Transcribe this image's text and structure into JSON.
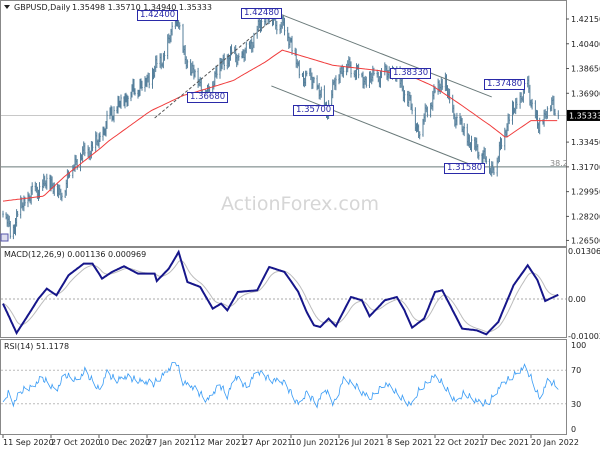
{
  "chart_data": [
    {
      "type": "ohlc",
      "symbol_header": "GBPUSD,Daily",
      "ohlc_header": "1.35498 1.35710 1.34940 1.35333",
      "watermark": "ActionForex.com",
      "y_ticks": [
        "1.42150",
        "1.40400",
        "1.38650",
        "1.36900",
        "1.35333",
        "1.33450",
        "1.31700",
        "1.29950",
        "1.28200",
        "1.26500"
      ],
      "ylim": [
        1.265,
        1.4215
      ],
      "current_price": 1.35333,
      "current_price_label": "1.35333",
      "fib_level": {
        "label": "38.2",
        "price": 1.317
      },
      "x_ticks": [
        {
          "date": "2020-09-11",
          "label": "11 Sep 2020"
        },
        {
          "date": "2020-10-27",
          "label": "27 Oct 2020"
        },
        {
          "date": "2020-12-10",
          "label": "10 Dec 2020"
        },
        {
          "date": "2021-01-27",
          "label": "27 Jan 2021"
        },
        {
          "date": "2021-03-12",
          "label": "12 Mar 2021"
        },
        {
          "date": "2021-04-27",
          "label": "27 Apr 2021"
        },
        {
          "date": "2021-06-10",
          "label": "10 Jun 2021"
        },
        {
          "date": "2021-07-26",
          "label": "26 Jul 2021"
        },
        {
          "date": "2021-09-08",
          "label": "8 Sep 2021"
        },
        {
          "date": "2021-10-22",
          "label": "22 Oct 2021"
        },
        {
          "date": "2021-12-07",
          "label": "7 Dec 2021"
        },
        {
          "date": "2022-01-20",
          "label": "20 Jan 2022"
        }
      ],
      "price_path": [
        [
          "2020-09-11",
          1.289
        ],
        [
          "2020-09-18",
          1.27
        ],
        [
          "2020-09-28",
          1.289
        ],
        [
          "2020-10-12",
          1.3
        ],
        [
          "2020-10-27",
          1.307
        ],
        [
          "2020-11-04",
          1.296
        ],
        [
          "2020-11-18",
          1.321
        ],
        [
          "2020-12-10",
          1.335
        ],
        [
          "2020-12-21",
          1.353
        ],
        [
          "2021-01-08",
          1.368
        ],
        [
          "2021-01-27",
          1.378
        ],
        [
          "2021-02-12",
          1.396
        ],
        [
          "2021-02-24",
          1.424
        ],
        [
          "2021-03-01",
          1.396
        ],
        [
          "2021-03-12",
          1.382
        ],
        [
          "2021-03-24",
          1.3668
        ],
        [
          "2021-04-01",
          1.385
        ],
        [
          "2021-04-15",
          1.396
        ],
        [
          "2021-04-27",
          1.394
        ],
        [
          "2021-05-11",
          1.414
        ],
        [
          "2021-05-17",
          1.4248
        ],
        [
          "2021-06-02",
          1.417
        ],
        [
          "2021-06-10",
          1.406
        ],
        [
          "2021-06-18",
          1.382
        ],
        [
          "2021-07-02",
          1.378
        ],
        [
          "2021-07-14",
          1.357
        ],
        [
          "2021-07-26",
          1.385
        ],
        [
          "2021-08-05",
          1.389
        ],
        [
          "2021-08-19",
          1.378
        ],
        [
          "2021-09-02",
          1.382
        ],
        [
          "2021-09-15",
          1.3833
        ],
        [
          "2021-09-28",
          1.364
        ],
        [
          "2021-10-07",
          1.342
        ],
        [
          "2021-10-22",
          1.371
        ],
        [
          "2021-11-01",
          1.378
        ],
        [
          "2021-11-05",
          1.36
        ],
        [
          "2021-11-15",
          1.346
        ],
        [
          "2021-11-24",
          1.335
        ],
        [
          "2021-12-07",
          1.325
        ],
        [
          "2021-12-14",
          1.3158
        ],
        [
          "2021-12-20",
          1.321
        ],
        [
          "2021-12-28",
          1.346
        ],
        [
          "2022-01-06",
          1.36
        ],
        [
          "2022-01-13",
          1.369
        ],
        [
          "2022-01-17",
          1.3748
        ],
        [
          "2022-01-20",
          1.364
        ],
        [
          "2022-01-27",
          1.343
        ],
        [
          "2022-02-03",
          1.358
        ],
        [
          "2022-02-09",
          1.36
        ],
        [
          "2022-02-14",
          1.35333
        ]
      ],
      "moving_average": [
        [
          "2020-09-11",
          1.2928
        ],
        [
          "2020-10-20",
          1.2963
        ],
        [
          "2020-11-09",
          1.3106
        ],
        [
          "2020-12-20",
          1.3354
        ],
        [
          "2021-01-31",
          1.3568
        ],
        [
          "2021-03-01",
          1.3674
        ],
        [
          "2021-03-24",
          1.3724
        ],
        [
          "2021-04-18",
          1.3781
        ],
        [
          "2021-05-17",
          1.3909
        ],
        [
          "2021-06-02",
          1.3995
        ],
        [
          "2021-06-18",
          1.3959
        ],
        [
          "2021-07-20",
          1.3888
        ],
        [
          "2021-08-30",
          1.3852
        ],
        [
          "2021-09-28",
          1.3817
        ],
        [
          "2021-10-19",
          1.3746
        ],
        [
          "2021-11-17",
          1.3603
        ],
        [
          "2021-12-14",
          1.3461
        ],
        [
          "2021-12-28",
          1.3376
        ],
        [
          "2022-01-20",
          1.3497
        ],
        [
          "2022-02-14",
          1.3497
        ]
      ],
      "annotations": [
        "1.42400",
        "1.42480",
        "1.36680",
        "1.35700",
        "1.38330",
        "1.37480",
        "1.31580"
      ],
      "channel_upper": [
        [
          "2021-05-31",
          1.425
        ],
        [
          "2021-12-15",
          1.3664
        ]
      ],
      "channel_lower": [
        [
          "2021-05-23",
          1.3742
        ],
        [
          "2021-12-01",
          1.3169
        ]
      ],
      "trendline_dashed": [
        [
          "2021-02-03",
          1.3515
        ],
        [
          "2021-05-30",
          1.425
        ]
      ],
      "colors": {
        "bars": "#557f9b",
        "ma": "#f03c3c",
        "lines": "#6a7a7a"
      }
    },
    {
      "type": "line",
      "header": "MACD(12,26,9) 0.001136 0.000969",
      "y_ticks": [
        "0.013063",
        "0.00",
        "-0.01003"
      ],
      "ylim": [
        -0.01003,
        0.013063
      ],
      "macd": [
        [
          "2020-09-11",
          -0.00125
        ],
        [
          "2020-09-24",
          -0.00924
        ],
        [
          "2020-10-06",
          -0.00397
        ],
        [
          "2020-10-15",
          0.0001
        ],
        [
          "2020-10-23",
          0.00282
        ],
        [
          "2020-11-01",
          0.00101
        ],
        [
          "2020-11-12",
          0.00645
        ],
        [
          "2020-11-26",
          0.00962
        ],
        [
          "2020-12-04",
          0.00962
        ],
        [
          "2020-12-13",
          0.00554
        ],
        [
          "2020-12-23",
          0.00736
        ],
        [
          "2021-01-04",
          0.0089
        ],
        [
          "2021-01-18",
          0.0069
        ],
        [
          "2021-02-03",
          0.0069
        ],
        [
          "2021-02-05",
          0.00491
        ],
        [
          "2021-02-16",
          0.00826
        ],
        [
          "2021-02-25",
          0.0128
        ],
        [
          "2021-03-05",
          0.00463
        ],
        [
          "2021-03-17",
          0.00327
        ],
        [
          "2021-03-29",
          -0.00262
        ],
        [
          "2021-04-06",
          -0.00125
        ],
        [
          "2021-04-12",
          -0.00308
        ],
        [
          "2021-04-22",
          0.00191
        ],
        [
          "2021-05-10",
          0.00237
        ],
        [
          "2021-05-21",
          0.00872
        ],
        [
          "2021-06-04",
          0.00736
        ],
        [
          "2021-06-17",
          0.00191
        ],
        [
          "2021-06-25",
          -0.00353
        ],
        [
          "2021-07-02",
          -0.00716
        ],
        [
          "2021-07-08",
          -0.00761
        ],
        [
          "2021-07-16",
          -0.00534
        ],
        [
          "2021-07-23",
          -0.00743
        ],
        [
          "2021-08-06",
          0.00055
        ],
        [
          "2021-08-16",
          -0.00035
        ],
        [
          "2021-08-23",
          -0.00471
        ],
        [
          "2021-09-06",
          -0.00035
        ],
        [
          "2021-09-17",
          0.00055
        ],
        [
          "2021-09-24",
          -0.00308
        ],
        [
          "2021-10-01",
          -0.00779
        ],
        [
          "2021-10-12",
          -0.00534
        ],
        [
          "2021-10-22",
          0.00191
        ],
        [
          "2021-10-29",
          0.00237
        ],
        [
          "2021-11-17",
          -0.00806
        ],
        [
          "2021-12-01",
          -0.00852
        ],
        [
          "2021-12-10",
          -0.0096
        ],
        [
          "2021-12-21",
          -0.00625
        ],
        [
          "2022-01-04",
          0.00373
        ],
        [
          "2022-01-17",
          0.00917
        ],
        [
          "2022-01-26",
          0.00509
        ],
        [
          "2022-02-02",
          -0.00054
        ],
        [
          "2022-02-14",
          0.00114
        ]
      ],
      "colors": {
        "macd": "#16168a",
        "signal": "#bdbdbd",
        "zero": "#aaaaaa"
      }
    },
    {
      "type": "line",
      "header": "RSI(14) 51.1178",
      "y_ticks": [
        "100",
        "70",
        "30",
        "0"
      ],
      "ylim": [
        0,
        100
      ],
      "levels": [
        70,
        30
      ],
      "rsi": [
        [
          "2020-09-11",
          30.6
        ],
        [
          "2020-09-16",
          44.4
        ],
        [
          "2020-09-21",
          31.3
        ],
        [
          "2020-09-30",
          46.4
        ],
        [
          "2020-10-08",
          50.4
        ],
        [
          "2020-10-19",
          60.3
        ],
        [
          "2020-11-01",
          46.4
        ],
        [
          "2020-11-09",
          64.3
        ],
        [
          "2020-11-20",
          58.3
        ],
        [
          "2020-11-27",
          68.3
        ],
        [
          "2020-12-11",
          46.4
        ],
        [
          "2020-12-17",
          66.3
        ],
        [
          "2020-12-28",
          58.3
        ],
        [
          "2021-01-03",
          62.3
        ],
        [
          "2021-01-18",
          58.3
        ],
        [
          "2021-02-02",
          53.6
        ],
        [
          "2021-02-12",
          66.3
        ],
        [
          "2021-02-23",
          79.4
        ],
        [
          "2021-03-01",
          56.3
        ],
        [
          "2021-03-09",
          50.4
        ],
        [
          "2021-03-24",
          34.5
        ],
        [
          "2021-04-05",
          52.4
        ],
        [
          "2021-04-12",
          40.5
        ],
        [
          "2021-04-20",
          62.3
        ],
        [
          "2021-04-30",
          50.4
        ],
        [
          "2021-05-10",
          68.3
        ],
        [
          "2021-05-21",
          60.3
        ],
        [
          "2021-06-04",
          54.4
        ],
        [
          "2021-06-18",
          28.6
        ],
        [
          "2021-06-25",
          42.5
        ],
        [
          "2021-07-05",
          30.6
        ],
        [
          "2021-07-13",
          46.4
        ],
        [
          "2021-07-21",
          29.8
        ],
        [
          "2021-07-30",
          58.3
        ],
        [
          "2021-08-12",
          50.4
        ],
        [
          "2021-08-23",
          34.5
        ],
        [
          "2021-09-06",
          54.4
        ],
        [
          "2021-09-20",
          38.5
        ],
        [
          "2021-10-01",
          27.8
        ],
        [
          "2021-10-07",
          44.4
        ],
        [
          "2021-10-20",
          62.3
        ],
        [
          "2021-10-29",
          54.4
        ],
        [
          "2021-11-12",
          30.6
        ],
        [
          "2021-11-19",
          42.5
        ],
        [
          "2021-12-06",
          28.6
        ],
        [
          "2021-12-13",
          32.5
        ],
        [
          "2021-12-23",
          50.4
        ],
        [
          "2022-01-03",
          62.3
        ],
        [
          "2022-01-14",
          73.0
        ],
        [
          "2022-01-21",
          58.3
        ],
        [
          "2022-01-28",
          35.3
        ],
        [
          "2022-02-04",
          56.3
        ],
        [
          "2022-02-14",
          51.1
        ]
      ],
      "colors": {
        "rsi": "#3a9cf5",
        "levels": "#bbbbbb"
      }
    }
  ]
}
